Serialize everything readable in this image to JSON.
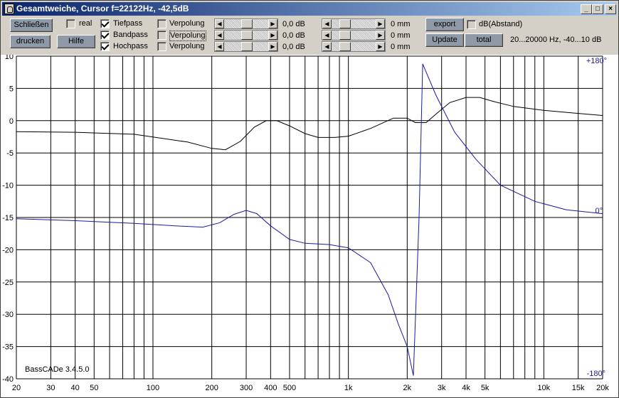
{
  "window": {
    "title": "Gesamtweiche, Cursor f=22122Hz, -42,5dB",
    "controls": {
      "minimize": "_",
      "maximize": "□",
      "close": "×"
    }
  },
  "toolbar": {
    "close_label": "Schließen",
    "print_label": "drucken",
    "help_label": "Hilfe",
    "real_label": "real",
    "export_label": "export",
    "update_label": "Update",
    "total_label": "total",
    "dbdist_label": "dB(Abstand)",
    "range_info": "20...20000 Hz, -40...10 dB"
  },
  "filters": [
    {
      "name": "Tiefpass",
      "checked": true,
      "polarity": "Verpolung",
      "level": "0,0 dB",
      "distance": "0 mm"
    },
    {
      "name": "Bandpass",
      "checked": true,
      "polarity": "Verpolung",
      "level": "0,0 dB",
      "distance": "0 mm"
    },
    {
      "name": "Hochpass",
      "checked": true,
      "polarity": "Verpolung",
      "level": "0,0 dB",
      "distance": "0 mm"
    }
  ],
  "chart": {
    "watermark": "BassCADe 3.4.5.0",
    "phase_top": "+180°",
    "phase_mid": "0°",
    "phase_bottom": "-180°"
  },
  "chart_data": {
    "type": "line",
    "xscale": "log",
    "xlim": [
      20,
      20000
    ],
    "ylim": [
      -40,
      10
    ],
    "yticks": [
      10,
      5,
      0,
      -5,
      -10,
      -15,
      -20,
      -25,
      -30,
      -35,
      -40
    ],
    "xtick_labels": [
      {
        "v": 20,
        "t": "20"
      },
      {
        "v": 30,
        "t": "30"
      },
      {
        "v": 40,
        "t": "40"
      },
      {
        "v": 50,
        "t": "50"
      },
      {
        "v": 100,
        "t": "100"
      },
      {
        "v": 200,
        "t": "200"
      },
      {
        "v": 300,
        "t": "300"
      },
      {
        "v": 400,
        "t": "400"
      },
      {
        "v": 500,
        "t": "500"
      },
      {
        "v": 1000,
        "t": "1k"
      },
      {
        "v": 2000,
        "t": "2k"
      },
      {
        "v": 3000,
        "t": "3k"
      },
      {
        "v": 4000,
        "t": "4k"
      },
      {
        "v": 5000,
        "t": "5k"
      },
      {
        "v": 10000,
        "t": "10k"
      },
      {
        "v": 15000,
        "t": "15k"
      },
      {
        "v": 20000,
        "t": "20k"
      }
    ],
    "grid": true,
    "series": [
      {
        "color": "#000000",
        "x": [
          20,
          40,
          80,
          150,
          200,
          235,
          280,
          330,
          380,
          430,
          500,
          600,
          700,
          850,
          1000,
          1300,
          1700,
          2000,
          2200,
          2500,
          2800,
          3300,
          4000,
          4700,
          5500,
          7000,
          10000,
          14000,
          20000
        ],
        "y": [
          -1.7,
          -1.8,
          -2.1,
          -3.3,
          -4.3,
          -4.5,
          -3.2,
          -1.0,
          0.0,
          0.0,
          -0.8,
          -2.0,
          -2.6,
          -2.6,
          -2.4,
          -1.2,
          0.4,
          0.4,
          -0.3,
          -0.3,
          1.0,
          2.8,
          3.6,
          3.6,
          3.0,
          2.2,
          1.6,
          1.2,
          0.8
        ]
      },
      {
        "color": "#1a1aa0",
        "x": [
          20,
          40,
          80,
          130,
          180,
          220,
          260,
          300,
          340,
          400,
          500,
          600,
          800,
          1000,
          1300,
          1600,
          1800,
          2000,
          2150,
          2300,
          2400,
          2800,
          3500,
          4500,
          6000,
          9000,
          13000,
          20000
        ],
        "y": [
          -15.2,
          -15.5,
          -15.9,
          -16.3,
          -16.5,
          -15.8,
          -14.5,
          -13.9,
          -14.4,
          -16.3,
          -18.4,
          -19.0,
          -19.2,
          -19.7,
          -22.0,
          -27.0,
          -31.5,
          -35.0,
          -39.5,
          -15.0,
          8.8,
          4.0,
          -1.8,
          -6.0,
          -10.0,
          -12.5,
          -13.8,
          -14.4
        ]
      }
    ]
  }
}
